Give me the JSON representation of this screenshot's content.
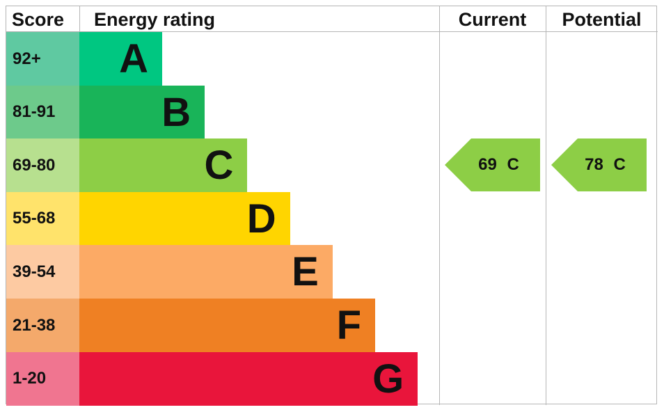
{
  "chart_data": {
    "type": "table",
    "headers": {
      "score": "Score",
      "rating": "Energy rating",
      "current": "Current",
      "potential": "Potential"
    },
    "bands": [
      {
        "score": "92+",
        "letter": "A",
        "color": "#00c781",
        "score_color": "#5fc9a1"
      },
      {
        "score": "81-91",
        "letter": "B",
        "color": "#19b459",
        "score_color": "#6dca8b"
      },
      {
        "score": "69-80",
        "letter": "C",
        "color": "#8dce46",
        "score_color": "#b7e08f"
      },
      {
        "score": "55-68",
        "letter": "D",
        "color": "#ffd500",
        "score_color": "#ffe36b"
      },
      {
        "score": "39-54",
        "letter": "E",
        "color": "#fcaa65",
        "score_color": "#fdcaa2"
      },
      {
        "score": "21-38",
        "letter": "F",
        "color": "#ef8023",
        "score_color": "#f4a96b"
      },
      {
        "score": "1-20",
        "letter": "G",
        "color": "#e9153b",
        "score_color": "#f07590"
      }
    ],
    "current": {
      "value": 69,
      "letter": "C",
      "label": "69 C",
      "color": "#8dce46"
    },
    "potential": {
      "value": 78,
      "letter": "C",
      "label": "78 C",
      "color": "#8dce46"
    }
  }
}
